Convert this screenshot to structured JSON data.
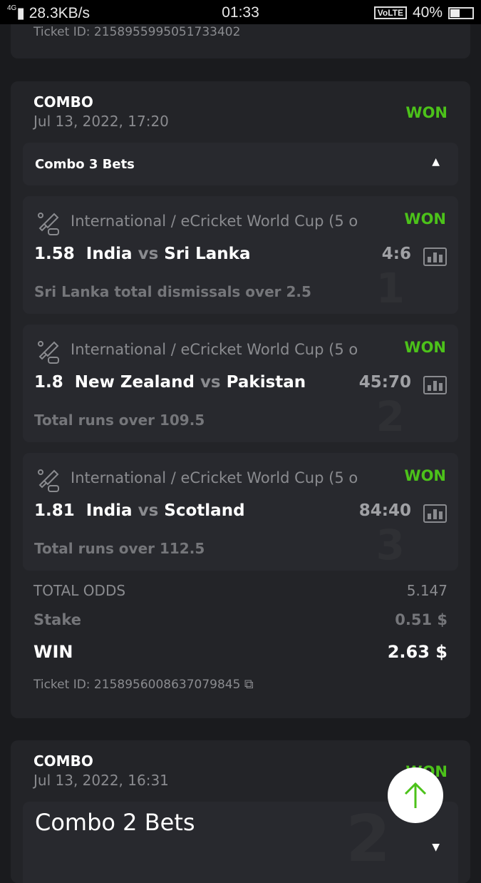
{
  "status_bar": {
    "network": "4G",
    "speed": "28.3KB/s",
    "time": "01:33",
    "volte": "VoLTE",
    "battery": "40%",
    "battery_level": 0.4
  },
  "previous_card": {
    "ticket_id": "Ticket ID: 2158955995051733402"
  },
  "combo_card": {
    "type": "COMBO",
    "date": "Jul 13, 2022, 17:20",
    "status": "WON",
    "status_color": "#4cc21a",
    "bets_toggle": "Combo 3 Bets",
    "bets": [
      {
        "number": "1",
        "league": "International / eCricket World Cup (5 o",
        "status": "WON",
        "odds": "1.58",
        "team1": "India",
        "vs": "vs",
        "team2": "Sri Lanka",
        "score": "4:6",
        "market": "Sri Lanka total dismissals over 2.5"
      },
      {
        "number": "2",
        "league": "International / eCricket World Cup (5 o",
        "status": "WON",
        "odds": "1.8",
        "team1": "New Zealand",
        "vs": "vs",
        "team2": "Pakistan",
        "score": "45:70",
        "market": "Total runs over 109.5"
      },
      {
        "number": "3",
        "league": "International / eCricket World Cup (5 o",
        "status": "WON",
        "odds": "1.81",
        "team1": "India",
        "vs": "vs",
        "team2": "Scotland",
        "score": "84:40",
        "market": "Total runs over 112.5"
      }
    ],
    "total_odds_label": "TOTAL ODDS",
    "total_odds": "5.147",
    "stake_label": "Stake",
    "stake": "0.51 $",
    "win_label": "WIN",
    "win": "2.63 $",
    "ticket_id": "Ticket ID: 2158956008637079845"
  },
  "next_card": {
    "type": "COMBO",
    "date": "Jul 13, 2022, 16:31",
    "status": "WON",
    "bets_toggle": "Combo 2 Bets",
    "watermark": "2"
  }
}
